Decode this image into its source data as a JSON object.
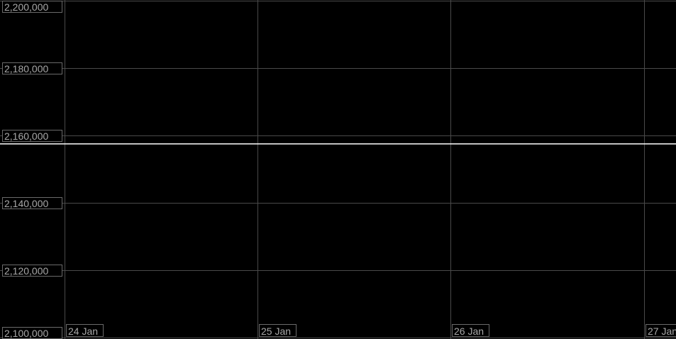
{
  "chart_data": {
    "type": "line",
    "title": "",
    "xlabel": "",
    "ylabel": "",
    "x_tick_labels": [
      "24 Jan",
      "25 Jan",
      "26 Jan",
      "27 Jan"
    ],
    "y_tick_labels": [
      "2,100,000",
      "2,120,000",
      "2,140,000",
      "2,160,000",
      "2,180,000",
      "2,200,000"
    ],
    "y_ticks": [
      2100000,
      2120000,
      2140000,
      2160000,
      2180000,
      2200000
    ],
    "ylim": [
      2100000,
      2200000
    ],
    "xlim": [
      "2000-01-23T16:00",
      "2000-01-27T04:00"
    ],
    "grid": true,
    "series": [
      {
        "x": [
          "2000-01-23T16:00",
          "2000-01-27T04:00"
        ],
        "values": [
          2157500,
          2157500
        ],
        "color": "#ffffff"
      }
    ],
    "colors": {
      "background": "#000000",
      "grid": "#4a4a4a",
      "label": "#a8a8a8",
      "label_border": "#6a6a6a"
    }
  }
}
